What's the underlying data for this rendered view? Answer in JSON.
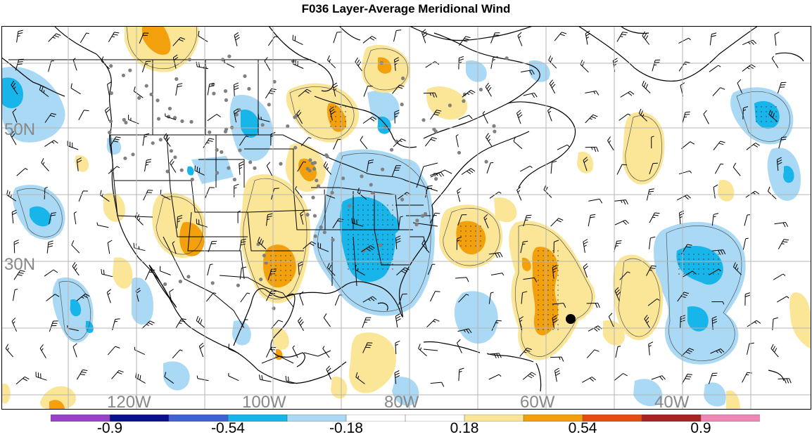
{
  "title": "F036 Layer-Average Meridional Wind",
  "latitude_labels": [
    "50N",
    "30N"
  ],
  "longitude_labels": [
    "120W",
    "100W",
    "80W",
    "60W",
    "40W"
  ],
  "colorbar": {
    "labels": [
      "-0.9",
      "-0.54",
      "-0.18",
      "0.18",
      "0.54",
      "0.9"
    ],
    "colors": [
      "#9b40c8",
      "#0a0f8c",
      "#3f63d2",
      "#17b5ea",
      "#a9d9f5",
      "#ffffff",
      "#ffffff",
      "#fbe698",
      "#f3a00d",
      "#e64b12",
      "#a82222",
      "#ef87b6"
    ]
  },
  "colors": {
    "light_blue": "#a9d9f5",
    "medium_blue": "#17b5ea",
    "light_yellow": "#fbe698",
    "orange": "#f3a00d",
    "grid": "#b5b5b5",
    "station_dot": "#808080"
  },
  "icons": [
    "wind-barb-icon",
    "station-dot-icon",
    "marker-dot-icon"
  ]
}
